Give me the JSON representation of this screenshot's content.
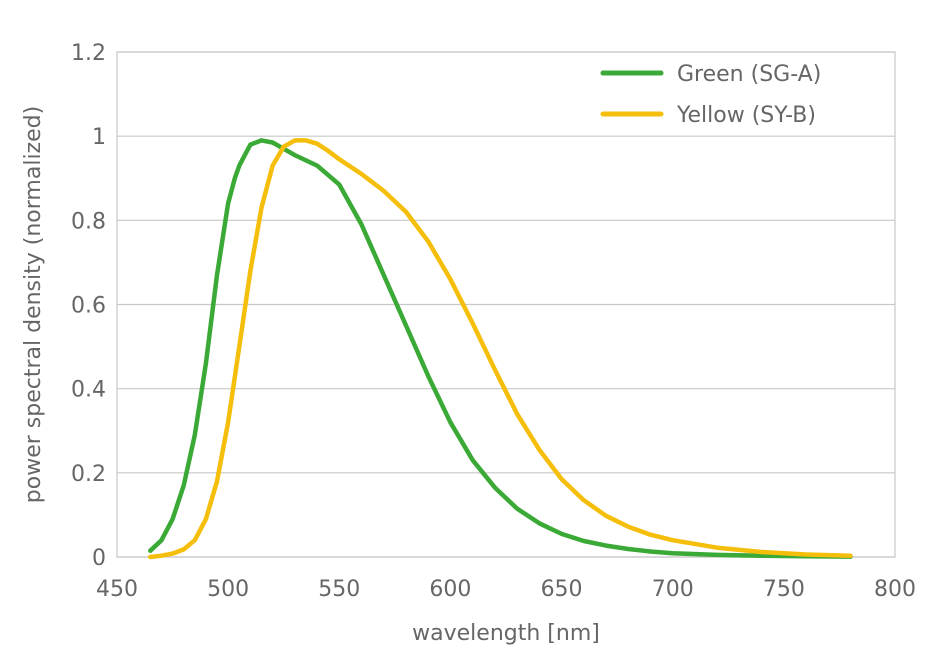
{
  "chart_data": {
    "type": "line",
    "xlabel": "wavelength [nm]",
    "ylabel": "power spectral density (normalized)",
    "xlim": [
      450,
      800
    ],
    "ylim": [
      0,
      1.2
    ],
    "x_ticks": [
      "450",
      "500",
      "550",
      "600",
      "650",
      "700",
      "750",
      "800"
    ],
    "y_ticks": [
      "0",
      "0.2",
      "0.4",
      "0.6",
      "0.8",
      "1",
      "1.2"
    ],
    "grid": "horizontal",
    "legend_position": "top-right",
    "series": [
      {
        "name": "Green (SG-A)",
        "color": "#3aa935",
        "x": [
          465,
          470,
          475,
          480,
          485,
          490,
          495,
          500,
          503,
          505,
          510,
          515,
          520,
          525,
          530,
          540,
          550,
          560,
          570,
          580,
          590,
          600,
          610,
          620,
          630,
          640,
          650,
          660,
          670,
          680,
          690,
          700,
          720,
          740,
          760,
          780
        ],
        "y": [
          0.015,
          0.04,
          0.09,
          0.17,
          0.29,
          0.46,
          0.67,
          0.84,
          0.9,
          0.93,
          0.98,
          0.99,
          0.985,
          0.97,
          0.955,
          0.93,
          0.885,
          0.79,
          0.67,
          0.55,
          0.43,
          0.32,
          0.23,
          0.165,
          0.115,
          0.08,
          0.055,
          0.038,
          0.027,
          0.019,
          0.013,
          0.009,
          0.005,
          0.003,
          0.002,
          0.001
        ]
      },
      {
        "name": "Yellow (SY-B)",
        "color": "#f5be0b",
        "x": [
          465,
          470,
          475,
          480,
          485,
          490,
          495,
          500,
          505,
          510,
          515,
          520,
          525,
          530,
          535,
          540,
          545,
          550,
          560,
          570,
          580,
          590,
          600,
          610,
          620,
          630,
          640,
          650,
          660,
          670,
          680,
          690,
          700,
          720,
          740,
          760,
          780
        ],
        "y": [
          0.0,
          0.003,
          0.008,
          0.018,
          0.04,
          0.09,
          0.18,
          0.32,
          0.5,
          0.68,
          0.83,
          0.93,
          0.975,
          0.99,
          0.99,
          0.982,
          0.965,
          0.945,
          0.91,
          0.87,
          0.82,
          0.75,
          0.66,
          0.555,
          0.445,
          0.34,
          0.255,
          0.185,
          0.135,
          0.098,
          0.072,
          0.053,
          0.04,
          0.022,
          0.012,
          0.006,
          0.003
        ]
      }
    ]
  }
}
